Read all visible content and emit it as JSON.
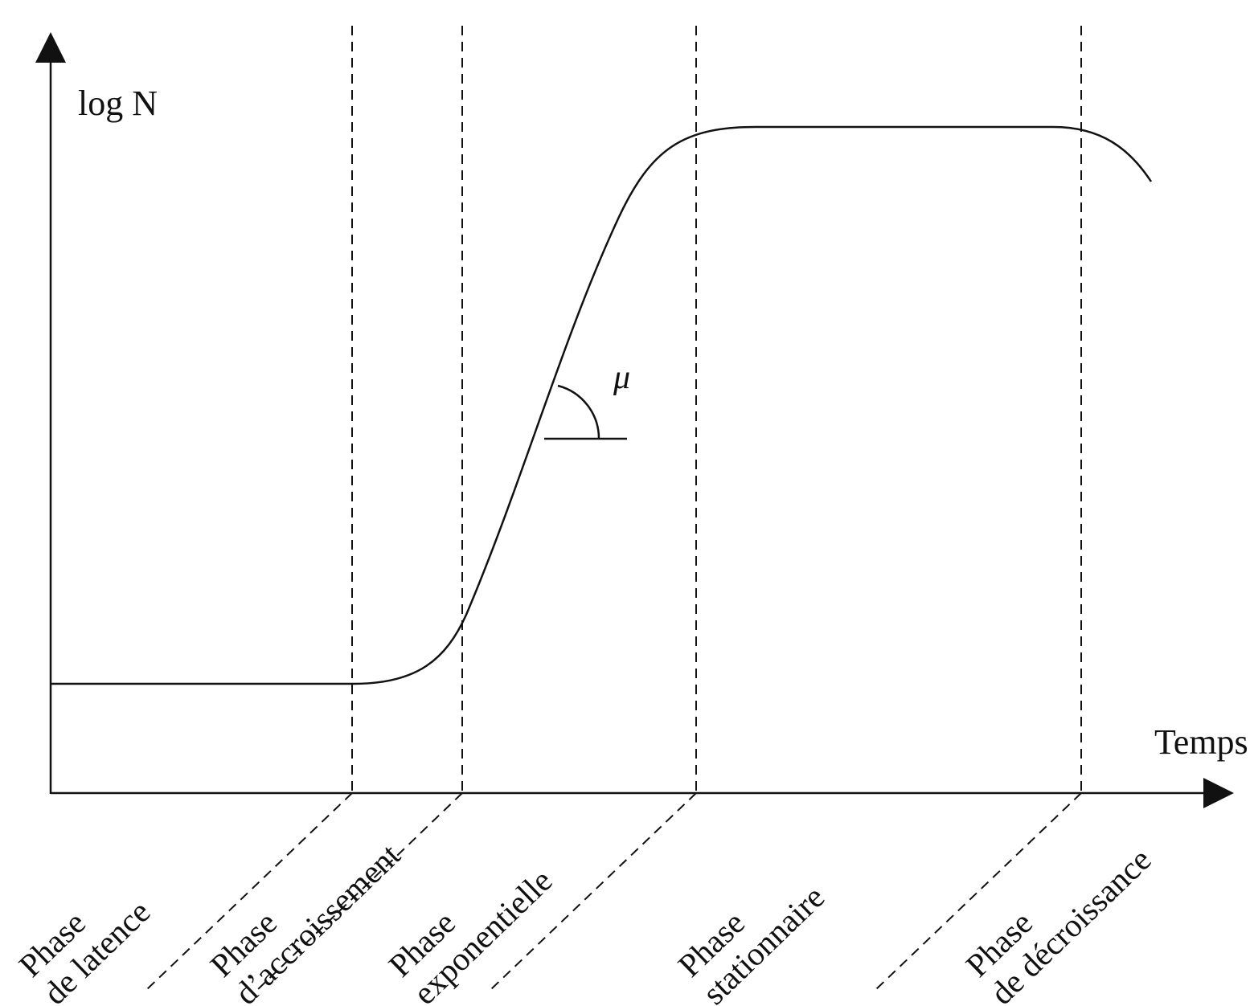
{
  "axes": {
    "y_label": "log N",
    "x_label": "Temps"
  },
  "slope_label": "μ",
  "phases": [
    {
      "id": "latence",
      "line1": "Phase",
      "line2": "de latence"
    },
    {
      "id": "accroissement",
      "line1": "Phase",
      "line2": "d’accroissement"
    },
    {
      "id": "exponentielle",
      "line1": "Phase",
      "line2": "exponentielle"
    },
    {
      "id": "stationnaire",
      "line1": "Phase",
      "line2": "stationnaire"
    },
    {
      "id": "decroissance",
      "line1": "Phase",
      "line2": "de décroissance"
    }
  ],
  "colors": {
    "stroke": "#111111",
    "background": "#ffffff"
  }
}
